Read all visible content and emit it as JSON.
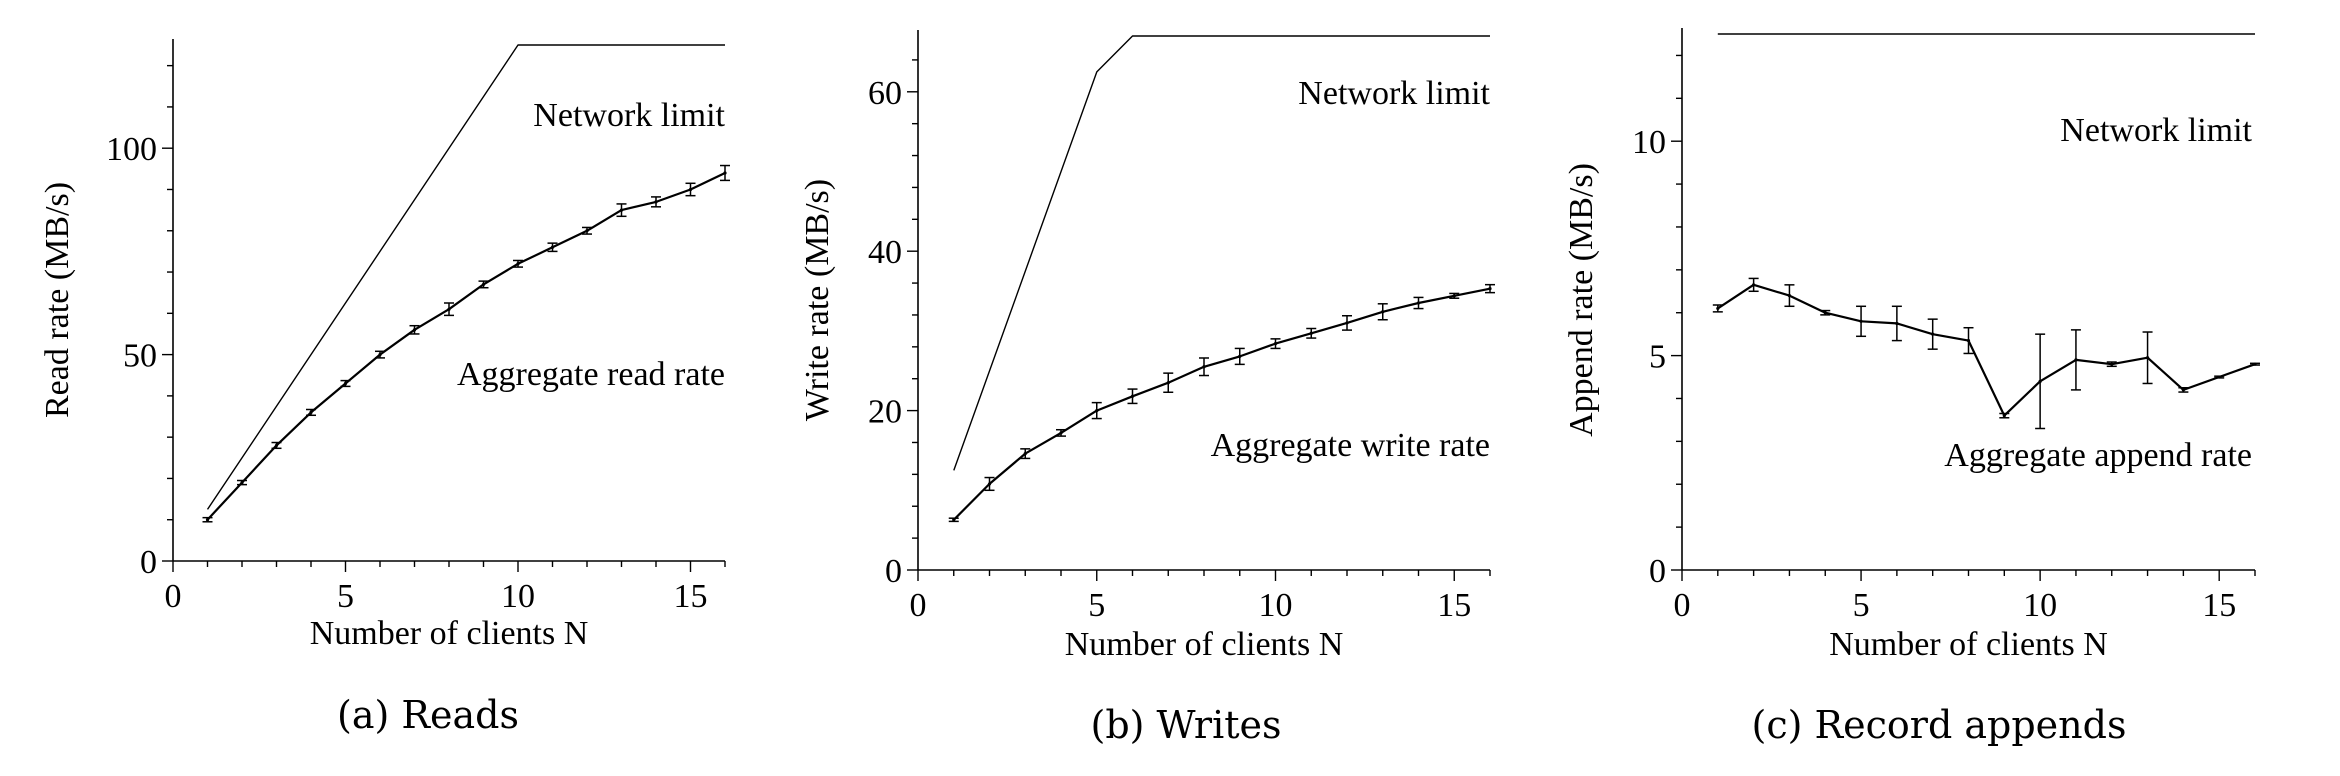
{
  "figure": {
    "panels": [
      {
        "caption": "(a) Reads"
      },
      {
        "caption": "(b) Writes"
      },
      {
        "caption": "(c) Record appends"
      }
    ]
  },
  "chart_data": [
    {
      "type": "line",
      "title": "",
      "caption": "(a) Reads",
      "xlabel": "Number of clients N",
      "ylabel": "Read rate (MB/s)",
      "xlim": [
        0,
        16
      ],
      "ylim": [
        0,
        125
      ],
      "xticks": [
        0,
        5,
        10,
        15
      ],
      "yticks": [
        0,
        50,
        100
      ],
      "grid": false,
      "series": [
        {
          "name": "Network limit",
          "style": "thin",
          "x": [
            1,
            10,
            11,
            16
          ],
          "values": [
            12.5,
            125,
            125,
            125
          ]
        },
        {
          "name": "Aggregate read rate",
          "style": "errorbars",
          "x": [
            1,
            2,
            3,
            4,
            5,
            6,
            7,
            8,
            9,
            10,
            11,
            12,
            13,
            14,
            15,
            16
          ],
          "values": [
            10,
            19,
            28,
            36,
            43,
            50,
            56,
            61,
            67,
            72,
            76,
            80,
            85,
            87,
            90,
            94
          ],
          "errors": [
            0.5,
            0.5,
            0.7,
            0.7,
            0.7,
            0.8,
            1.0,
            1.5,
            0.8,
            0.8,
            1.0,
            0.8,
            1.5,
            1.2,
            1.5,
            1.8
          ]
        }
      ]
    },
    {
      "type": "line",
      "title": "",
      "caption": "(b) Writes",
      "xlabel": "Number of clients N",
      "ylabel": "Write rate (MB/s)",
      "xlim": [
        0,
        16
      ],
      "ylim": [
        0,
        67
      ],
      "xticks": [
        0,
        5,
        10,
        15
      ],
      "yticks": [
        0,
        20,
        40,
        60
      ],
      "grid": false,
      "series": [
        {
          "name": "Network limit",
          "style": "thin",
          "x": [
            1,
            5,
            6,
            16
          ],
          "values": [
            12.5,
            62.5,
            67,
            67
          ]
        },
        {
          "name": "Aggregate write rate",
          "style": "errorbars",
          "x": [
            1,
            2,
            3,
            4,
            5,
            6,
            7,
            8,
            9,
            10,
            11,
            12,
            13,
            14,
            15,
            16
          ],
          "values": [
            6.3,
            10.8,
            14.6,
            17.2,
            20.0,
            21.8,
            23.5,
            25.5,
            26.8,
            28.4,
            29.7,
            31.0,
            32.4,
            33.5,
            34.4,
            35.3
          ],
          "errors": [
            0.2,
            0.8,
            0.6,
            0.4,
            1.0,
            0.9,
            1.2,
            1.1,
            1.0,
            0.6,
            0.6,
            0.9,
            1.0,
            0.7,
            0.3,
            0.5
          ]
        }
      ]
    },
    {
      "type": "line",
      "title": "",
      "caption": "(c) Record appends",
      "xlabel": "Number of clients N",
      "ylabel": "Append rate (MB/s)",
      "xlim": [
        0,
        16
      ],
      "ylim": [
        0,
        12.5
      ],
      "xticks": [
        0,
        5,
        10,
        15
      ],
      "yticks": [
        0,
        5,
        10
      ],
      "grid": false,
      "series": [
        {
          "name": "Network limit",
          "style": "thin",
          "x": [
            1,
            16
          ],
          "values": [
            12.5,
            12.5
          ]
        },
        {
          "name": "Aggregate append rate",
          "style": "errorbars",
          "x": [
            1,
            2,
            3,
            4,
            5,
            6,
            7,
            8,
            9,
            10,
            11,
            12,
            13,
            14,
            15,
            16
          ],
          "values": [
            6.1,
            6.65,
            6.4,
            6.0,
            5.8,
            5.75,
            5.5,
            5.35,
            3.6,
            4.4,
            4.9,
            4.8,
            4.95,
            4.2,
            4.5,
            4.8
          ],
          "errors": [
            0.08,
            0.15,
            0.25,
            0.05,
            0.35,
            0.4,
            0.35,
            0.3,
            0.05,
            1.1,
            0.7,
            0.05,
            0.6,
            0.05,
            0.02,
            0.02
          ]
        }
      ]
    }
  ]
}
